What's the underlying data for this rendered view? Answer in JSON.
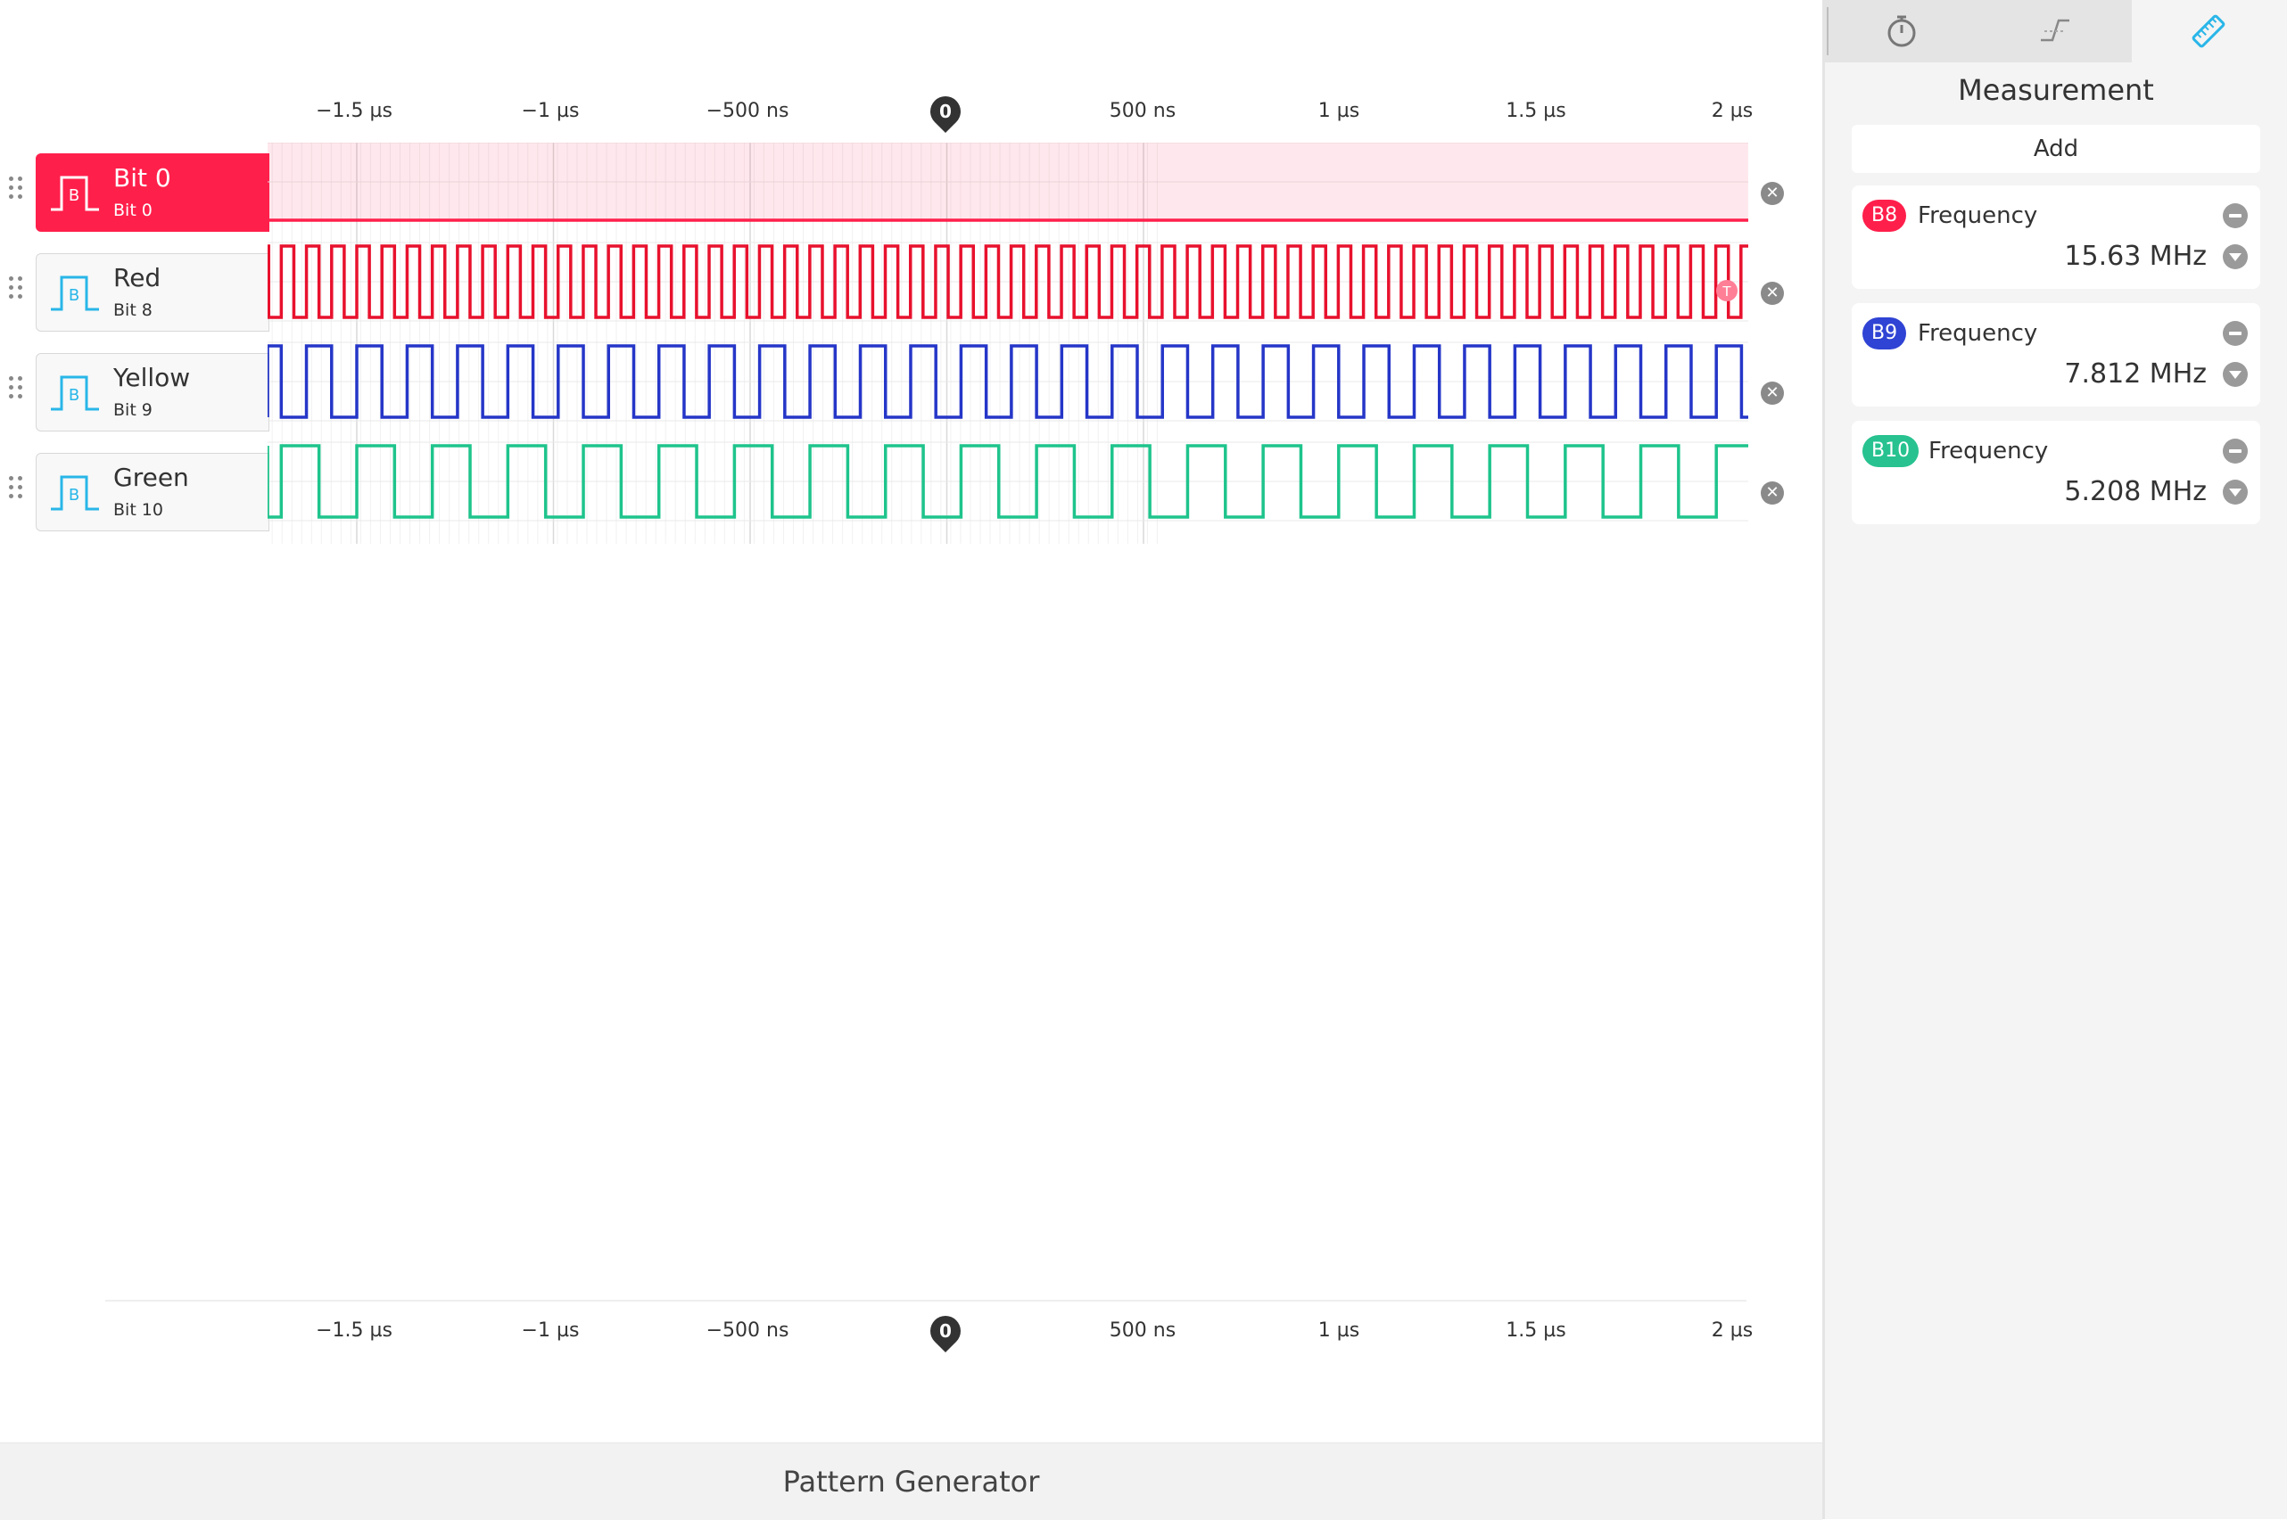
{
  "axis": {
    "ticks": [
      {
        "label": "−1.5 µs",
        "t_us": -1.5
      },
      {
        "label": "−1 µs",
        "t_us": -1.0
      },
      {
        "label": "−500 ns",
        "t_us": -0.5
      },
      {
        "label": "500 ns",
        "t_us": 0.5
      },
      {
        "label": "1 µs",
        "t_us": 1.0
      },
      {
        "label": "1.5 µs",
        "t_us": 1.5
      },
      {
        "label": "2 µs",
        "t_us": 2.0
      }
    ],
    "zero_label": "0",
    "range_us": [
      -1.74,
      2.03
    ]
  },
  "channels": [
    {
      "name": "Bit 0",
      "sub": "Bit 0",
      "color": "#ff1f4b",
      "active": true,
      "freq_mhz": 0
    },
    {
      "name": "Red",
      "sub": "Bit 8",
      "color": "#e8112d",
      "active": false,
      "freq_mhz": 15.63
    },
    {
      "name": "Yellow",
      "sub": "Bit 9",
      "color": "#2536c8",
      "active": false,
      "freq_mhz": 7.812
    },
    {
      "name": "Green",
      "sub": "Bit 10",
      "color": "#1ec48c",
      "active": false,
      "freq_mhz": 5.208
    }
  ],
  "footer": {
    "title": "Pattern Generator"
  },
  "sidebar": {
    "tabs": [
      {
        "name": "stopwatch-icon"
      },
      {
        "name": "trigger-edge-icon"
      },
      {
        "name": "ruler-icon"
      }
    ],
    "title": "Measurement",
    "add_label": "Add",
    "measurements": [
      {
        "badge": "B8",
        "badge_color": "#ff1f4b",
        "type": "Frequency",
        "value": "15.63 MHz"
      },
      {
        "badge": "B9",
        "badge_color": "#2f43d4",
        "type": "Frequency",
        "value": "7.812 MHz"
      },
      {
        "badge": "B10",
        "badge_color": "#27c28f",
        "type": "Frequency",
        "value": "5.208 MHz"
      }
    ]
  }
}
